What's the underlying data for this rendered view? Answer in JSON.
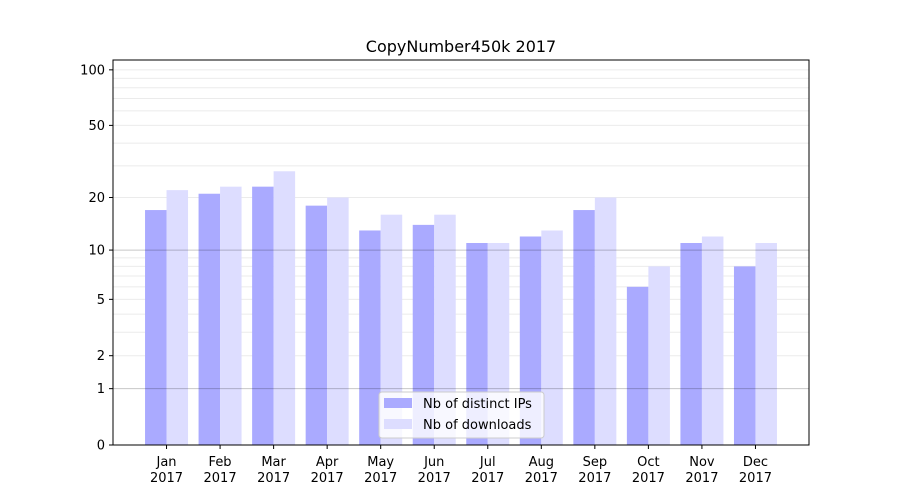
{
  "chart_data": {
    "type": "bar",
    "title": "CopyNumber450k 2017",
    "xlabel": "",
    "ylabel": "",
    "yscale": "log(1+y)",
    "ylim": [
      0,
      113
    ],
    "yticks": [
      0,
      1,
      2,
      5,
      10,
      20,
      50,
      100
    ],
    "grid": true,
    "legend_position": "lower center",
    "categories": [
      "Jan\n2017",
      "Feb\n2017",
      "Mar\n2017",
      "Apr\n2017",
      "May\n2017",
      "Jun\n2017",
      "Jul\n2017",
      "Aug\n2017",
      "Sep\n2017",
      "Oct\n2017",
      "Nov\n2017",
      "Dec\n2017"
    ],
    "series": [
      {
        "name": "Nb of distinct IPs",
        "color": "#aaaaff",
        "values": [
          17,
          21,
          23,
          18,
          13,
          14,
          11,
          12,
          17,
          6,
          11,
          8
        ]
      },
      {
        "name": "Nb of downloads",
        "color": "#ddddff",
        "values": [
          22,
          23,
          28,
          20,
          16,
          16,
          11,
          13,
          20,
          8,
          12,
          11
        ]
      }
    ]
  }
}
